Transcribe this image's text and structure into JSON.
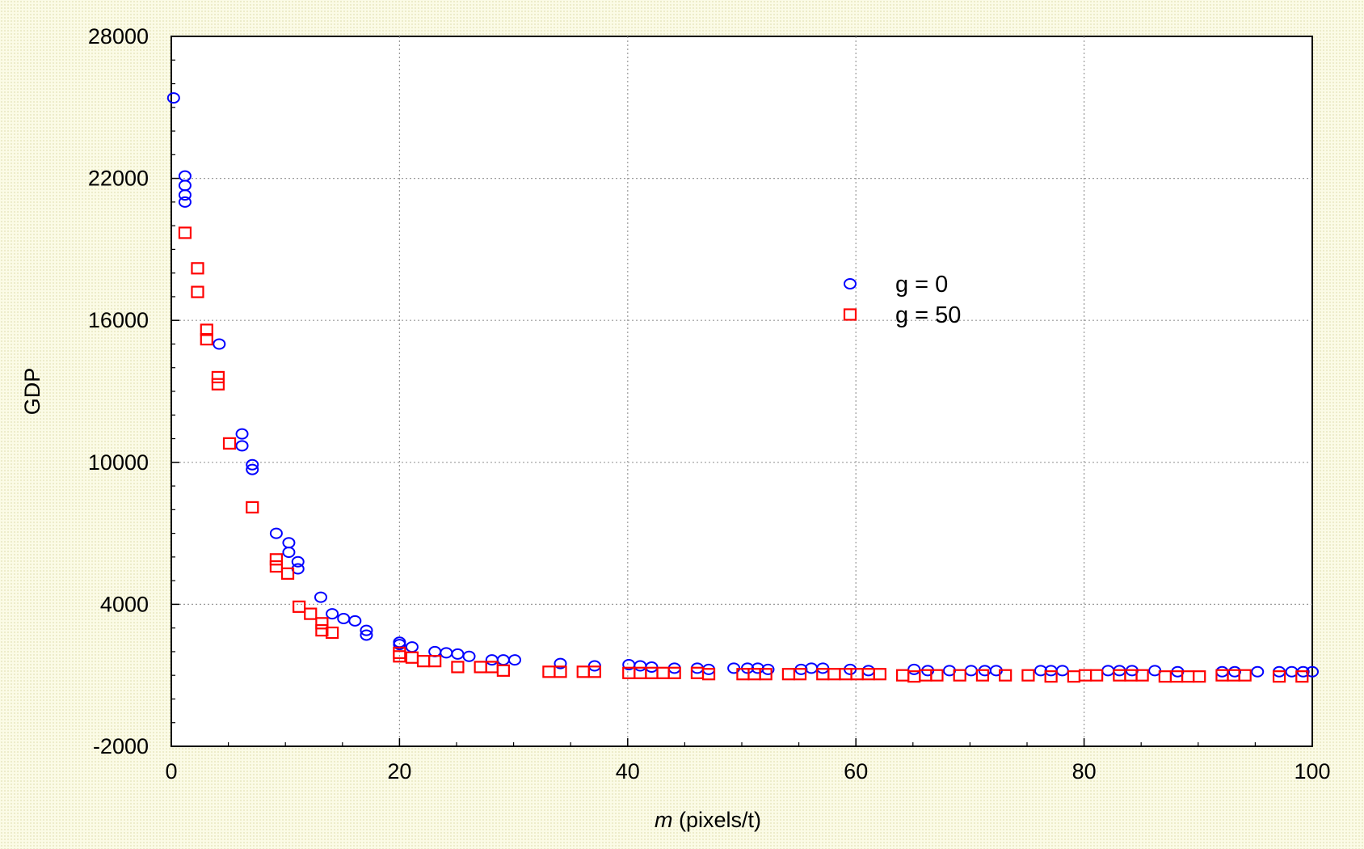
{
  "chart_data": {
    "type": "scatter",
    "title": "",
    "xlabel_italic": "m",
    "xlabel_rest": " (pixels/t)",
    "ylabel": "GDP",
    "xlim": [
      0,
      100
    ],
    "ylim": [
      -2000,
      28000
    ],
    "xticks": [
      0,
      20,
      40,
      60,
      80,
      100
    ],
    "yticks": [
      -2000,
      4000,
      10000,
      16000,
      22000,
      28000
    ],
    "grid": true,
    "legend_position": "right-center",
    "series": [
      {
        "name": "g = 0",
        "marker": "circle",
        "color": "#0000ff",
        "points": [
          [
            0.2,
            25400
          ],
          [
            1.2,
            22100
          ],
          [
            1.2,
            21700
          ],
          [
            1.2,
            21300
          ],
          [
            1.2,
            21000
          ],
          [
            4.2,
            15000
          ],
          [
            6.2,
            11200
          ],
          [
            6.2,
            10700
          ],
          [
            7.1,
            9900
          ],
          [
            7.1,
            9700
          ],
          [
            9.2,
            7000
          ],
          [
            10.3,
            6600
          ],
          [
            10.3,
            6200
          ],
          [
            11.1,
            5800
          ],
          [
            11.1,
            5500
          ],
          [
            13.1,
            4300
          ],
          [
            14.1,
            3600
          ],
          [
            15.1,
            3400
          ],
          [
            16.1,
            3300
          ],
          [
            17.1,
            2900
          ],
          [
            17.1,
            2700
          ],
          [
            20.0,
            2400
          ],
          [
            20.0,
            2300
          ],
          [
            21.1,
            2200
          ],
          [
            23.1,
            2000
          ],
          [
            24.1,
            1950
          ],
          [
            25.1,
            1900
          ],
          [
            26.1,
            1800
          ],
          [
            28.1,
            1650
          ],
          [
            29.1,
            1650
          ],
          [
            30.1,
            1650
          ],
          [
            34.1,
            1500
          ],
          [
            37.1,
            1400
          ],
          [
            40.1,
            1450
          ],
          [
            41.1,
            1400
          ],
          [
            42.1,
            1350
          ],
          [
            44.1,
            1300
          ],
          [
            46.1,
            1300
          ],
          [
            47.1,
            1250
          ],
          [
            49.3,
            1300
          ],
          [
            50.5,
            1300
          ],
          [
            51.4,
            1300
          ],
          [
            52.3,
            1250
          ],
          [
            55.2,
            1250
          ],
          [
            56.1,
            1300
          ],
          [
            57.1,
            1300
          ],
          [
            59.5,
            1250
          ],
          [
            61.1,
            1200
          ],
          [
            65.1,
            1250
          ],
          [
            66.3,
            1200
          ],
          [
            68.2,
            1200
          ],
          [
            70.1,
            1200
          ],
          [
            71.3,
            1200
          ],
          [
            72.3,
            1200
          ],
          [
            76.2,
            1200
          ],
          [
            77.1,
            1200
          ],
          [
            78.1,
            1200
          ],
          [
            82.1,
            1200
          ],
          [
            83.1,
            1200
          ],
          [
            84.2,
            1200
          ],
          [
            86.2,
            1200
          ],
          [
            88.2,
            1150
          ],
          [
            92.1,
            1150
          ],
          [
            93.2,
            1150
          ],
          [
            95.2,
            1150
          ],
          [
            97.1,
            1150
          ],
          [
            98.2,
            1150
          ],
          [
            99.2,
            1150
          ],
          [
            100.0,
            1150
          ]
        ]
      },
      {
        "name": "g = 50",
        "marker": "square",
        "color": "#ff0000",
        "points": [
          [
            1.2,
            19700
          ],
          [
            2.3,
            18200
          ],
          [
            2.3,
            17200
          ],
          [
            3.1,
            15600
          ],
          [
            3.1,
            15200
          ],
          [
            4.1,
            13600
          ],
          [
            4.1,
            13300
          ],
          [
            5.1,
            10800
          ],
          [
            7.1,
            8100
          ],
          [
            9.2,
            5900
          ],
          [
            9.2,
            5600
          ],
          [
            10.2,
            5300
          ],
          [
            11.2,
            3900
          ],
          [
            12.2,
            3600
          ],
          [
            13.2,
            3200
          ],
          [
            13.2,
            2900
          ],
          [
            14.1,
            2800
          ],
          [
            20.0,
            1800
          ],
          [
            20.0,
            1950
          ],
          [
            21.1,
            1750
          ],
          [
            22.1,
            1600
          ],
          [
            23.1,
            1600
          ],
          [
            25.1,
            1350
          ],
          [
            27.1,
            1350
          ],
          [
            28.1,
            1350
          ],
          [
            29.1,
            1200
          ],
          [
            33.1,
            1150
          ],
          [
            34.1,
            1150
          ],
          [
            36.1,
            1150
          ],
          [
            37.1,
            1150
          ],
          [
            40.1,
            1100
          ],
          [
            41.1,
            1100
          ],
          [
            42.1,
            1100
          ],
          [
            43.1,
            1100
          ],
          [
            44.1,
            1100
          ],
          [
            46.1,
            1100
          ],
          [
            47.1,
            1050
          ],
          [
            50.1,
            1050
          ],
          [
            51.1,
            1050
          ],
          [
            52.1,
            1050
          ],
          [
            54.1,
            1050
          ],
          [
            55.1,
            1050
          ],
          [
            57.1,
            1050
          ],
          [
            58.1,
            1050
          ],
          [
            59.1,
            1050
          ],
          [
            60.1,
            1050
          ],
          [
            61.1,
            1050
          ],
          [
            62.1,
            1050
          ],
          [
            64.1,
            1000
          ],
          [
            65.1,
            950
          ],
          [
            66.1,
            1000
          ],
          [
            67.1,
            1000
          ],
          [
            69.1,
            1000
          ],
          [
            71.1,
            1000
          ],
          [
            73.1,
            1000
          ],
          [
            75.1,
            1000
          ],
          [
            77.1,
            950
          ],
          [
            79.1,
            950
          ],
          [
            80.1,
            1000
          ],
          [
            81.1,
            1000
          ],
          [
            83.1,
            1000
          ],
          [
            84.1,
            1000
          ],
          [
            85.1,
            1000
          ],
          [
            87.1,
            950
          ],
          [
            88.1,
            950
          ],
          [
            89.1,
            950
          ],
          [
            90.1,
            950
          ],
          [
            92.1,
            1000
          ],
          [
            93.1,
            1000
          ],
          [
            94.1,
            1000
          ],
          [
            97.1,
            950
          ],
          [
            99.1,
            950
          ]
        ]
      }
    ]
  }
}
